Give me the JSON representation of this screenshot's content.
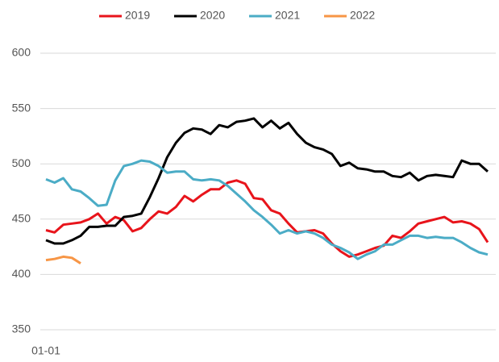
{
  "chart_data": {
    "type": "line",
    "categories": [
      "01-01",
      null,
      null,
      null,
      null,
      null,
      null,
      null,
      null,
      null,
      null,
      null,
      null,
      null,
      null,
      null,
      null,
      null,
      null,
      null,
      null,
      null,
      null,
      null,
      null,
      null,
      null,
      null,
      null,
      null,
      null,
      null,
      null,
      null,
      null,
      null,
      null,
      null,
      null,
      null,
      null,
      null,
      null,
      null,
      null,
      null,
      null,
      null,
      null,
      null,
      null,
      null
    ],
    "series": [
      {
        "name": "2019",
        "color": "#e8141b",
        "values": [
          440,
          438,
          445,
          446,
          447,
          450,
          455,
          446,
          452,
          449,
          439,
          442,
          450,
          457,
          455,
          461,
          471,
          466,
          472,
          477,
          477,
          483,
          485,
          482,
          469,
          468,
          458,
          455,
          446,
          438,
          439,
          440,
          437,
          428,
          421,
          416,
          418,
          421,
          424,
          426,
          435,
          433,
          439,
          446,
          448,
          450,
          452,
          447,
          448,
          446,
          441,
          429
        ]
      },
      {
        "name": "2020",
        "color": "#000000",
        "values": [
          431,
          428,
          428,
          431,
          435,
          443,
          443,
          444,
          444,
          452,
          453,
          455,
          470,
          487,
          506,
          519,
          528,
          532,
          531,
          527,
          535,
          533,
          538,
          539,
          541,
          533,
          539,
          532,
          537,
          527,
          519,
          515,
          513,
          509,
          498,
          501,
          496,
          495,
          493,
          493,
          489,
          488,
          492,
          485,
          489,
          490,
          489,
          488,
          503,
          500,
          500,
          493
        ]
      },
      {
        "name": "2021",
        "color": "#4bacc6",
        "values": [
          486,
          483,
          487,
          477,
          475,
          469,
          462,
          463,
          485,
          498,
          500,
          503,
          502,
          498,
          492,
          493,
          493,
          486,
          485,
          486,
          485,
          480,
          473,
          466,
          458,
          452,
          445,
          437,
          440,
          437,
          439,
          437,
          433,
          427,
          424,
          420,
          414,
          418,
          421,
          427,
          427,
          431,
          435,
          435,
          433,
          434,
          433,
          433,
          429,
          424,
          420,
          418
        ]
      },
      {
        "name": "2022",
        "color": "#f79646",
        "values": [
          413,
          414,
          416,
          415,
          410,
          null,
          null,
          null,
          null,
          null,
          null,
          null,
          null,
          null,
          null,
          null,
          null,
          null,
          null,
          null,
          null,
          null,
          null,
          null,
          null,
          null,
          null,
          null,
          null,
          null,
          null,
          null,
          null,
          null,
          null,
          null,
          null,
          null,
          null,
          null,
          null,
          null,
          null,
          null,
          null,
          null,
          null,
          null,
          null,
          null,
          null,
          null
        ]
      }
    ],
    "ylim": [
      350,
      600
    ],
    "yticks": [
      350,
      400,
      450,
      500,
      550,
      600
    ],
    "grid": true,
    "legend": "top"
  }
}
